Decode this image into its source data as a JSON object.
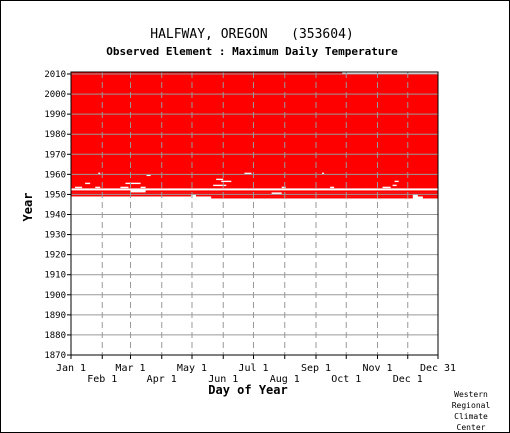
{
  "chart_data": {
    "type": "bar",
    "title": "HALFWAY, OREGON   (353604)",
    "subtitle": "Observed Element : Maximum Daily Temperature",
    "xlabel": "Day of Year",
    "ylabel": "Year",
    "ylim": [
      1870,
      2011
    ],
    "yticks": [
      1870,
      1880,
      1890,
      1900,
      1910,
      1920,
      1930,
      1940,
      1950,
      1960,
      1970,
      1980,
      1990,
      2000,
      2010
    ],
    "xticks_top": [
      {
        "label": "Jan 1",
        "day": 1
      },
      {
        "label": "Mar 1",
        "day": 60
      },
      {
        "label": "May 1",
        "day": 121
      },
      {
        "label": "Jul 1",
        "day": 182
      },
      {
        "label": "Sep 1",
        "day": 244
      },
      {
        "label": "Nov 1",
        "day": 305
      },
      {
        "label": "Dec 31",
        "day": 365
      }
    ],
    "xticks_bottom": [
      {
        "label": "Feb 1",
        "day": 32
      },
      {
        "label": "Apr 1",
        "day": 91
      },
      {
        "label": "Jun 1",
        "day": 152
      },
      {
        "label": "Aug 1",
        "day": 213
      },
      {
        "label": "Oct 1",
        "day": 274
      },
      {
        "label": "Dec 1",
        "day": 335
      }
    ],
    "grid": true,
    "series_color": "#ff0000",
    "data_coverage": {
      "complete_from_year": 1953,
      "complete_to_year": 2010,
      "partial_from_year": 1948
    },
    "partial_segments": [
      {
        "year": 1951,
        "start_day": 1,
        "end_day": 60
      },
      {
        "year": 1951,
        "start_day": 75,
        "end_day": 365
      },
      {
        "year": 1950,
        "start_day": 1,
        "end_day": 200
      },
      {
        "year": 1950,
        "start_day": 210,
        "end_day": 365
      },
      {
        "year": 1949,
        "start_day": 1,
        "end_day": 120
      },
      {
        "year": 1949,
        "start_day": 125,
        "end_day": 340
      },
      {
        "year": 1949,
        "start_day": 345,
        "end_day": 365
      },
      {
        "year": 1948,
        "start_day": 140,
        "end_day": 340
      },
      {
        "year": 1948,
        "start_day": 350,
        "end_day": 365
      }
    ],
    "gap_segments": [
      {
        "year": 1955,
        "start_day": 15,
        "end_day": 20
      },
      {
        "year": 1955,
        "start_day": 55,
        "end_day": 70
      },
      {
        "year": 1953,
        "start_day": 5,
        "end_day": 12
      },
      {
        "year": 1953,
        "start_day": 25,
        "end_day": 30
      },
      {
        "year": 1953,
        "start_day": 50,
        "end_day": 58
      },
      {
        "year": 1953,
        "start_day": 70,
        "end_day": 75
      },
      {
        "year": 1960,
        "start_day": 28,
        "end_day": 30
      },
      {
        "year": 1959,
        "start_day": 76,
        "end_day": 80
      },
      {
        "year": 1960,
        "start_day": 173,
        "end_day": 180
      },
      {
        "year": 1957,
        "start_day": 145,
        "end_day": 152
      },
      {
        "year": 1956,
        "start_day": 150,
        "end_day": 160
      },
      {
        "year": 1954,
        "start_day": 142,
        "end_day": 155
      },
      {
        "year": 1952,
        "start_day": 140,
        "end_day": 148
      },
      {
        "year": 1953,
        "start_day": 210,
        "end_day": 214
      },
      {
        "year": 1952,
        "start_day": 290,
        "end_day": 302
      },
      {
        "year": 1953,
        "start_day": 310,
        "end_day": 318
      },
      {
        "year": 1954,
        "start_day": 320,
        "end_day": 324
      },
      {
        "year": 1956,
        "start_day": 322,
        "end_day": 326
      },
      {
        "year": 1953,
        "start_day": 258,
        "end_day": 262
      },
      {
        "year": 1960,
        "start_day": 250,
        "end_day": 252
      },
      {
        "year": 2010,
        "start_day": 270,
        "end_day": 365
      }
    ]
  },
  "credit": [
    "Western",
    "Regional",
    "Climate",
    "Center"
  ]
}
